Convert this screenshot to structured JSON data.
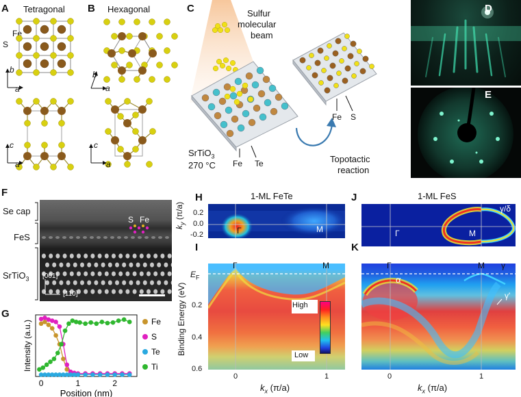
{
  "panel_letters": [
    "A",
    "B",
    "C",
    "D",
    "E",
    "F",
    "G",
    "H",
    "I",
    "J",
    "K"
  ],
  "panelA": {
    "title": "Tetragonal",
    "fe_label": "Fe",
    "s_label": "S",
    "axes_top": [
      "b",
      "a"
    ],
    "axes_bottom": [
      "c",
      "a"
    ]
  },
  "panelB": {
    "title": "Hexagonal",
    "axes_top": [
      "b",
      "a"
    ],
    "axes_bottom": [
      "c",
      "a"
    ]
  },
  "panelC": {
    "beam_line1": "Sulfur",
    "beam_line2": "molecular",
    "beam_line3": "beam",
    "substrate": "SrTiO",
    "substrate_sub": "3",
    "temp": "270 °C",
    "fe_left": "Fe",
    "te_left": "Te",
    "fe_right": "Fe",
    "s_right": "S",
    "reaction_line1": "Topotactic",
    "reaction_line2": "reaction"
  },
  "panelF": {
    "se_cap": "Se cap",
    "fes": "FeS",
    "srtio": "SrTiO",
    "srtio_sub": "3",
    "s": "S",
    "fe": "Fe",
    "dir1": "[001]",
    "dir2": "[110]"
  },
  "panelH": {
    "title": "1-ML FeTe",
    "gamma": "Γ",
    "m": "M",
    "ylabel": "k",
    "ylabel_sub": "y",
    "ylabel_unit": " (π/a)",
    "yticks": [
      "0.2",
      "0.0",
      "-0.2"
    ]
  },
  "panelI": {
    "ylabel": "Binding Energy (eV)",
    "ef": "E",
    "ef_sub": "F",
    "yticks": [
      "0.2",
      "0.4",
      "0.6"
    ],
    "xticks": [
      "0",
      "1"
    ],
    "xlabel": "k",
    "xlabel_sub": "x",
    "xlabel_unit": " (π/a)",
    "cbar_high": "High",
    "cbar_low": "Low",
    "gamma": "Γ",
    "m": "M"
  },
  "panelJ": {
    "title": "1-ML FeS",
    "gamma": "Γ",
    "m": "M",
    "gd": "γ/δ"
  },
  "panelK": {
    "gamma": "Γ",
    "m": "M",
    "g1": "γ",
    "alpha": "α",
    "gp": "γ'",
    "xticks": [
      "0",
      "1"
    ],
    "xlabel": "k",
    "xlabel_sub": "x",
    "xlabel_unit": " (π/a)"
  },
  "chart_data": {
    "type": "line",
    "panel": "G",
    "title": "",
    "xlabel": "Position (nm)",
    "ylabel": "Intensity (a.u.)",
    "xlim": [
      -0.15,
      2.6
    ],
    "ylim": [
      0,
      1.05
    ],
    "xticks": [
      "0",
      "1",
      "2"
    ],
    "series": [
      {
        "name": "Fe",
        "color": "#c8952c",
        "x": [
          0,
          0.1,
          0.2,
          0.3,
          0.4,
          0.5,
          0.6,
          0.7,
          0.8,
          0.9,
          1.0,
          1.2,
          1.4,
          1.6,
          1.8,
          2.0,
          2.2,
          2.4
        ],
        "y": [
          0.9,
          0.93,
          0.88,
          0.82,
          0.7,
          0.55,
          0.3,
          0.12,
          0.07,
          0.05,
          0.05,
          0.05,
          0.05,
          0.05,
          0.05,
          0.05,
          0.05,
          0.05
        ]
      },
      {
        "name": "S",
        "color": "#e020c0",
        "x": [
          0,
          0.1,
          0.2,
          0.3,
          0.4,
          0.5,
          0.6,
          0.7,
          0.8,
          0.9,
          1.0,
          1.2,
          1.4,
          1.6,
          1.8,
          2.0,
          2.2,
          2.4
        ],
        "y": [
          0.98,
          1.0,
          0.97,
          0.95,
          0.93,
          0.85,
          0.55,
          0.2,
          0.08,
          0.06,
          0.05,
          0.05,
          0.05,
          0.05,
          0.05,
          0.05,
          0.05,
          0.05
        ]
      },
      {
        "name": "Te",
        "color": "#2aa9e0",
        "x": [
          0,
          0.1,
          0.2,
          0.3,
          0.4,
          0.5,
          0.6,
          0.7,
          0.8,
          0.9,
          1.0,
          1.2,
          1.4,
          1.6,
          1.8,
          2.0,
          2.2,
          2.4
        ],
        "y": [
          0.03,
          0.03,
          0.03,
          0.03,
          0.03,
          0.03,
          0.03,
          0.03,
          0.03,
          0.03,
          0.03,
          0.03,
          0.03,
          0.03,
          0.03,
          0.03,
          0.03,
          0.03
        ]
      },
      {
        "name": "Ti",
        "color": "#2fb72f",
        "x": [
          -0.05,
          0.05,
          0.15,
          0.25,
          0.35,
          0.45,
          0.55,
          0.65,
          0.75,
          0.85,
          0.95,
          1.05,
          1.2,
          1.35,
          1.5,
          1.65,
          1.8,
          1.95,
          2.1,
          2.25,
          2.4
        ],
        "y": [
          0.12,
          0.15,
          0.2,
          0.25,
          0.3,
          0.4,
          0.55,
          0.78,
          0.9,
          0.95,
          0.93,
          0.92,
          0.9,
          0.92,
          0.9,
          0.93,
          0.91,
          0.92,
          0.95,
          0.97,
          0.93
        ]
      }
    ]
  }
}
